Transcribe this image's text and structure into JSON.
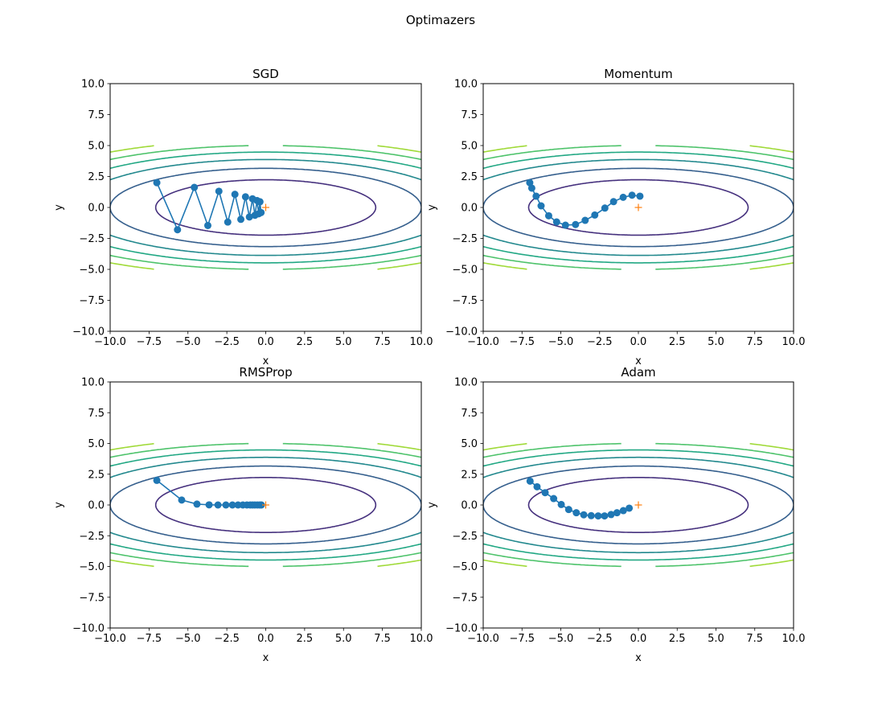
{
  "figure_title": "Optimazers",
  "tick_labels": [
    "−10.0",
    "−7.5",
    "−5.0",
    "−2.5",
    "0.0",
    "2.5",
    "5.0",
    "7.5",
    "10.0"
  ],
  "tick_values": [
    -10,
    -7.5,
    -5,
    -2.5,
    0,
    2.5,
    5,
    7.5,
    10
  ],
  "colors": {
    "path": "#1f77b4",
    "minimum": "#ff7f0e",
    "contours": [
      "#46317e",
      "#355f8d",
      "#23898e",
      "#22a884",
      "#4ec36b",
      "#a0da39"
    ]
  },
  "contour": {
    "function": "x^2/10 + y^2",
    "levels": [
      5,
      10,
      15,
      20,
      25,
      30
    ],
    "y_range": [
      -4.99,
      4.99
    ]
  },
  "chart_data": [
    {
      "type": "line",
      "title": "SGD",
      "xlabel": "x",
      "ylabel": "y",
      "xlim": [
        -10,
        10
      ],
      "ylim": [
        -10,
        10
      ],
      "grid": false,
      "minimum": [
        0,
        0
      ],
      "x": [
        -7,
        -5.67,
        -4.59,
        -3.72,
        -3.01,
        -2.44,
        -1.98,
        -1.6,
        -1.3,
        -1.05,
        -0.85,
        -0.69,
        -0.56,
        -0.45,
        -0.37,
        -0.3
      ],
      "y": [
        2,
        -1.8,
        1.62,
        -1.46,
        1.31,
        -1.18,
        1.06,
        -0.96,
        0.86,
        -0.77,
        0.7,
        -0.63,
        0.56,
        -0.51,
        0.46,
        -0.41
      ]
    },
    {
      "type": "line",
      "title": "Momentum",
      "xlabel": "x",
      "ylabel": "y",
      "xlim": [
        -10,
        10
      ],
      "ylim": [
        -10,
        10
      ],
      "grid": false,
      "minimum": [
        0,
        0
      ],
      "x": [
        -7,
        -6.87,
        -6.59,
        -6.27,
        -5.78,
        -5.27,
        -4.7,
        -4.05,
        -3.43,
        -2.81,
        -2.16,
        -1.6,
        -0.98,
        -0.41,
        0.1
      ],
      "y": [
        2,
        1.56,
        0.91,
        0.13,
        -0.67,
        -1.17,
        -1.43,
        -1.38,
        -1.04,
        -0.61,
        -0.05,
        0.47,
        0.82,
        0.99,
        0.91
      ]
    },
    {
      "type": "line",
      "title": "RMSProp",
      "xlabel": "x",
      "ylabel": "y",
      "xlim": [
        -10,
        10
      ],
      "ylim": [
        -10,
        10
      ],
      "grid": false,
      "minimum": [
        0,
        0
      ],
      "x": [
        -7,
        -5.4,
        -4.42,
        -3.64,
        -3.07,
        -2.56,
        -2.14,
        -1.78,
        -1.47,
        -1.21,
        -1,
        -0.85,
        -0.7,
        -0.54,
        -0.39,
        -0.28
      ],
      "y": [
        2,
        0.4,
        0.07,
        0.01,
        0,
        0,
        0,
        0,
        0,
        0,
        0,
        0,
        0,
        0,
        0,
        0
      ]
    },
    {
      "type": "line",
      "title": "Adam",
      "xlabel": "x",
      "ylabel": "y",
      "xlim": [
        -10,
        10
      ],
      "ylim": [
        -10,
        10
      ],
      "grid": false,
      "minimum": [
        0,
        0
      ],
      "x": [
        -6.98,
        -6.53,
        -6.01,
        -5.46,
        -4.97,
        -4.49,
        -4,
        -3.52,
        -3.04,
        -2.59,
        -2.18,
        -1.76,
        -1.38,
        -0.97,
        -0.59
      ],
      "y": [
        1.94,
        1.48,
        1,
        0.52,
        0.04,
        -0.37,
        -0.63,
        -0.8,
        -0.87,
        -0.89,
        -0.89,
        -0.78,
        -0.63,
        -0.46,
        -0.26
      ]
    }
  ]
}
